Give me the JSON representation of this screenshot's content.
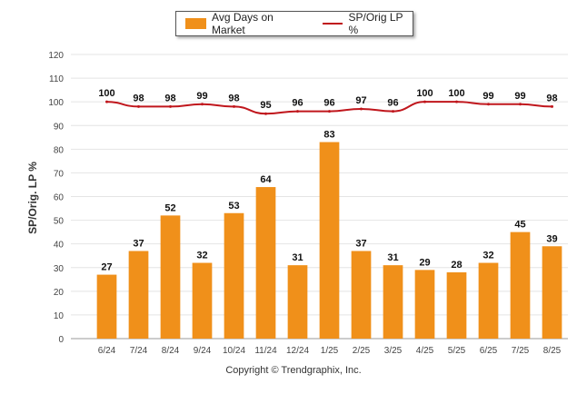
{
  "chart_data": {
    "type": "bar",
    "categories": [
      "6/24",
      "7/24",
      "8/24",
      "9/24",
      "10/24",
      "11/24",
      "12/24",
      "1/25",
      "2/25",
      "3/25",
      "4/25",
      "5/25",
      "6/25",
      "7/25",
      "8/25"
    ],
    "series": [
      {
        "name": "Avg Days on Market",
        "kind": "bar",
        "color": "#f0901a",
        "values": [
          27,
          37,
          52,
          32,
          53,
          64,
          31,
          83,
          37,
          31,
          29,
          28,
          32,
          45,
          39
        ]
      },
      {
        "name": "SP/Orig LP %",
        "kind": "line",
        "color": "#c0161c",
        "values": [
          100,
          98,
          98,
          99,
          98,
          95,
          96,
          96,
          97,
          96,
          100,
          100,
          99,
          99,
          98
        ]
      }
    ],
    "title": "",
    "xlabel": "",
    "ylabel": "SP/Orig. LP %",
    "ylim": [
      0,
      120
    ],
    "yticks": [
      0,
      10,
      20,
      30,
      40,
      50,
      60,
      70,
      80,
      90,
      100,
      110,
      120
    ],
    "grid": true,
    "legend_position": "top-center"
  },
  "footer": {
    "copyright": "Copyright © Trendgraphix, Inc."
  }
}
